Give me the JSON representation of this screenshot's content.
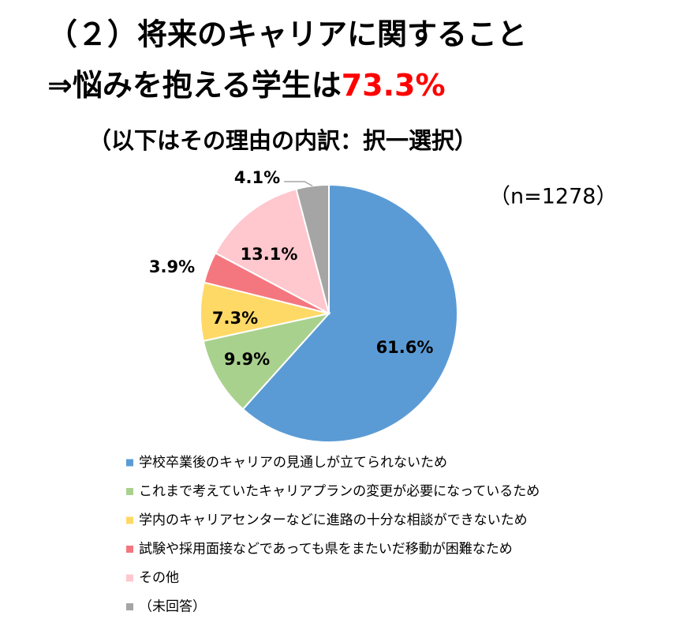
{
  "chart_data": {
    "type": "pie",
    "title": "（２）将来のキャリアに関すること",
    "title_line2": "⇒悩みを抱える学生は",
    "title_highlight": "73.3%",
    "subtitle": "（以下はその理由の内訳：択一選択）",
    "note": "（n=1278）",
    "categories": [
      "学校卒業後のキャリアの見通しが立てられないため",
      "これまで考えていたキャリアプランの変更が必要になっているため",
      "学内のキャリアセンターなどに進路の十分な相談ができないため",
      "試験や採用面接などであっても県をまたいだ移動が困難なため",
      "その他",
      "（未回答）"
    ],
    "values": [
      61.6,
      9.9,
      7.3,
      3.9,
      13.1,
      4.1
    ],
    "value_labels": [
      "61.6%",
      "9.9%",
      "7.3%",
      "3.9%",
      "13.1%",
      "4.1%"
    ],
    "colors": [
      "#5b9bd5",
      "#a9d18e",
      "#ffd966",
      "#f4777f",
      "#ffc7ce",
      "#a5a5a5"
    ]
  }
}
